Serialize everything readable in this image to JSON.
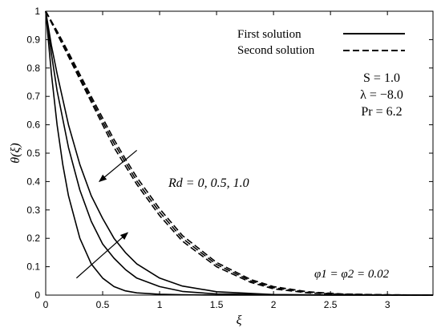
{
  "chart_data": {
    "type": "line",
    "xlabel": "ξ",
    "ylabel": "θ(ξ)",
    "xlim": [
      0,
      3.4
    ],
    "ylim": [
      0,
      1
    ],
    "xticks": [
      0,
      0.5,
      1,
      1.5,
      2,
      2.5,
      3
    ],
    "xtick_labels": [
      "0",
      "0.5",
      "1",
      "1.5",
      "2",
      "2.5",
      "3"
    ],
    "yticks": [
      0,
      0.1,
      0.2,
      0.3,
      0.4,
      0.5,
      0.6,
      0.7,
      0.8,
      0.9,
      1
    ],
    "ytick_labels": [
      "0",
      "0.1",
      "0.2",
      "0.3",
      "0.4",
      "0.5",
      "0.6",
      "0.7",
      "0.8",
      "0.9",
      "1"
    ],
    "legend": {
      "placement": "top-right",
      "entries": [
        {
          "label": "First solution",
          "style": "solid"
        },
        {
          "label": "Second solution",
          "style": "dashed"
        }
      ]
    },
    "annotations": {
      "params": [
        "S = 1.0",
        "λ = −8.0",
        "Pr = 6.2"
      ],
      "rd": "Rd = 0, 0.5, 1.0",
      "phi": "φ1 = φ2 = 0.02"
    },
    "series": [
      {
        "style": "solid",
        "x": [
          0,
          0.05,
          0.1,
          0.15,
          0.2,
          0.3,
          0.4,
          0.5,
          0.6,
          0.7,
          0.8,
          1.0,
          1.2,
          1.5,
          2.0,
          3.4
        ],
        "y": [
          1,
          0.78,
          0.6,
          0.46,
          0.35,
          0.2,
          0.11,
          0.06,
          0.03,
          0.015,
          0.008,
          0.003,
          0.001,
          0,
          0,
          0
        ]
      },
      {
        "style": "solid",
        "x": [
          0,
          0.05,
          0.1,
          0.2,
          0.3,
          0.4,
          0.5,
          0.6,
          0.7,
          0.8,
          1.0,
          1.2,
          1.5,
          2.0,
          3.4
        ],
        "y": [
          1,
          0.85,
          0.72,
          0.52,
          0.37,
          0.26,
          0.18,
          0.13,
          0.09,
          0.06,
          0.03,
          0.013,
          0.004,
          0.001,
          0
        ]
      },
      {
        "style": "solid",
        "x": [
          0,
          0.05,
          0.1,
          0.2,
          0.3,
          0.4,
          0.5,
          0.6,
          0.7,
          0.8,
          1.0,
          1.2,
          1.5,
          2.0,
          2.5,
          3.4
        ],
        "y": [
          1,
          0.88,
          0.78,
          0.6,
          0.46,
          0.35,
          0.27,
          0.2,
          0.15,
          0.11,
          0.06,
          0.032,
          0.012,
          0.002,
          0,
          0
        ]
      },
      {
        "style": "dashed",
        "x": [
          0,
          0.1,
          0.2,
          0.3,
          0.4,
          0.5,
          0.6,
          0.7,
          0.8,
          1.0,
          1.2,
          1.5,
          1.8,
          2.0,
          2.3,
          2.6,
          3.0,
          3.4
        ],
        "y": [
          1,
          0.92,
          0.84,
          0.76,
          0.68,
          0.6,
          0.52,
          0.455,
          0.39,
          0.28,
          0.19,
          0.1,
          0.045,
          0.022,
          0.008,
          0.002,
          0,
          0
        ]
      },
      {
        "style": "dashed",
        "x": [
          0,
          0.1,
          0.2,
          0.3,
          0.4,
          0.5,
          0.6,
          0.7,
          0.8,
          1.0,
          1.2,
          1.5,
          1.8,
          2.0,
          2.3,
          2.6,
          3.0,
          3.4
        ],
        "y": [
          1,
          0.925,
          0.847,
          0.768,
          0.69,
          0.612,
          0.535,
          0.468,
          0.402,
          0.292,
          0.2,
          0.108,
          0.05,
          0.026,
          0.01,
          0.003,
          0.001,
          0
        ]
      },
      {
        "style": "dashed",
        "x": [
          0,
          0.1,
          0.2,
          0.3,
          0.4,
          0.5,
          0.6,
          0.7,
          0.8,
          1.0,
          1.2,
          1.5,
          1.8,
          2.0,
          2.3,
          2.6,
          3.0,
          3.4
        ],
        "y": [
          1,
          0.93,
          0.855,
          0.778,
          0.7,
          0.624,
          0.548,
          0.48,
          0.415,
          0.304,
          0.21,
          0.115,
          0.055,
          0.03,
          0.012,
          0.004,
          0.001,
          0
        ]
      }
    ],
    "arrows": [
      {
        "from": [
          0.8,
          0.51
        ],
        "to": [
          0.47,
          0.4
        ]
      },
      {
        "from": [
          0.27,
          0.06
        ],
        "to": [
          0.72,
          0.22
        ]
      }
    ]
  }
}
